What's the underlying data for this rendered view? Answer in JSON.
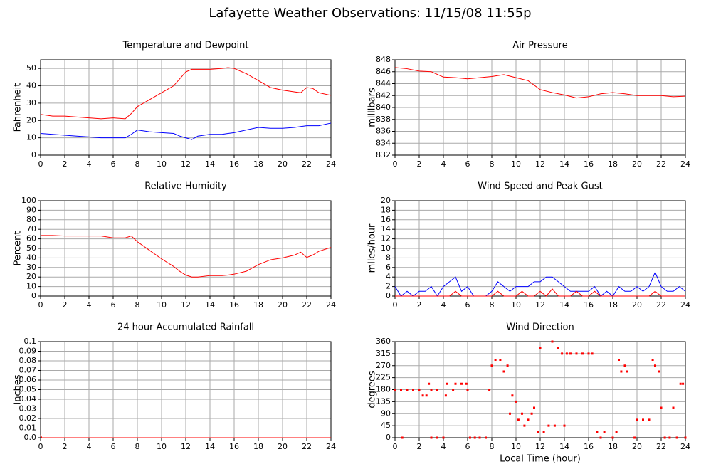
{
  "title": "Lafayette Weather Observations: 11/15/08 11:55p",
  "chart_data": [
    {
      "type": "line",
      "title": "Temperature and Dewpoint",
      "y_label": "Fahrenheit",
      "x": [
        0,
        1,
        2,
        3,
        4,
        5,
        6,
        7,
        7.5,
        8,
        9,
        10,
        11,
        11.5,
        12,
        12.5,
        13,
        14,
        15,
        15.5,
        16,
        17,
        18,
        19,
        20,
        21,
        21.5,
        22,
        22.5,
        23,
        24
      ],
      "series": [
        {
          "color": "#ff0000",
          "values": [
            23.5,
            22.5,
            22.5,
            22,
            21.5,
            21,
            21.5,
            21,
            24,
            28,
            32,
            36,
            40,
            44,
            48,
            49.5,
            49.5,
            49.5,
            50,
            50.5,
            50,
            47,
            43,
            39,
            37.5,
            36.5,
            36,
            39,
            38.5,
            36,
            34.5
          ]
        },
        {
          "color": "#0000ff",
          "values": [
            12.5,
            12,
            11.5,
            11,
            10.5,
            10,
            10,
            10,
            12,
            14.5,
            13.5,
            13,
            12.5,
            11,
            10,
            9,
            11,
            12,
            12,
            12.5,
            13,
            14.5,
            16,
            15.5,
            15.5,
            16,
            16.5,
            17,
            17,
            17,
            18.5
          ]
        }
      ],
      "xlim": [
        0,
        24
      ],
      "xticks": [
        0,
        2,
        4,
        6,
        8,
        10,
        12,
        14,
        16,
        18,
        20,
        22,
        24
      ],
      "ylim": [
        0,
        55
      ],
      "yticks": [
        0,
        10,
        20,
        30,
        40,
        50
      ],
      "grid": true
    },
    {
      "type": "line",
      "title": "Air Pressure",
      "y_label": "millibars",
      "x": [
        0,
        1,
        2,
        3,
        4,
        5,
        6,
        7,
        8,
        9,
        10,
        11,
        12,
        13,
        14,
        15,
        16,
        17,
        18,
        19,
        20,
        21,
        22,
        23,
        24
      ],
      "series": [
        {
          "color": "#ff0000",
          "values": [
            846.7,
            846.5,
            846.1,
            846,
            845.1,
            845,
            844.8,
            845,
            845.2,
            845.5,
            845,
            844.5,
            843,
            842.5,
            842.1,
            841.6,
            841.8,
            842.3,
            842.5,
            842.3,
            842,
            842,
            842,
            841.8,
            841.9
          ]
        }
      ],
      "xlim": [
        0,
        24
      ],
      "xticks": [
        0,
        2,
        4,
        6,
        8,
        10,
        12,
        14,
        16,
        18,
        20,
        22,
        24
      ],
      "ylim": [
        832,
        848
      ],
      "yticks": [
        832,
        834,
        836,
        838,
        840,
        842,
        844,
        846,
        848
      ],
      "grid": true
    },
    {
      "type": "line",
      "title": "Relative Humidity",
      "y_label": "Percent",
      "x": [
        0,
        1,
        2,
        3,
        4,
        5,
        6,
        7,
        7.5,
        8,
        9,
        10,
        11,
        11.5,
        12,
        12.5,
        13,
        14,
        15,
        15.5,
        16,
        17,
        18,
        19,
        20,
        21,
        21.5,
        22,
        22.5,
        23,
        24
      ],
      "series": [
        {
          "color": "#ff0000",
          "values": [
            63.5,
            63.5,
            63,
            63,
            63,
            63,
            61,
            61,
            63,
            57,
            48,
            39,
            31,
            26,
            22,
            20,
            20,
            21.5,
            21.5,
            22,
            23,
            26,
            33,
            38,
            40,
            43,
            46,
            40.5,
            43,
            47,
            51
          ]
        }
      ],
      "xlim": [
        0,
        24
      ],
      "xticks": [
        0,
        2,
        4,
        6,
        8,
        10,
        12,
        14,
        16,
        18,
        20,
        22,
        24
      ],
      "ylim": [
        0,
        100
      ],
      "yticks": [
        0,
        10,
        20,
        30,
        40,
        50,
        60,
        70,
        80,
        90,
        100
      ],
      "grid": true
    },
    {
      "type": "line",
      "title": "Wind Speed and Peak Gust",
      "y_label": "miles/hour",
      "x": [
        0,
        0.5,
        1,
        1.5,
        2,
        2.5,
        3,
        3.5,
        4,
        4.5,
        5,
        5.5,
        6,
        6.5,
        7,
        7.5,
        8,
        8.5,
        9,
        9.5,
        10,
        10.5,
        11,
        11.5,
        12,
        12.5,
        13,
        13.5,
        14,
        14.5,
        15,
        15.5,
        16,
        16.5,
        17,
        17.5,
        18,
        18.5,
        19,
        19.5,
        20,
        20.5,
        21,
        21.5,
        22,
        22.5,
        23,
        23.5,
        24
      ],
      "series": [
        {
          "color": "#0000ff",
          "values": [
            2,
            0,
            1,
            0,
            1,
            1,
            2,
            0,
            2,
            3,
            4,
            1,
            2,
            0,
            0,
            0,
            1,
            3,
            2,
            1,
            2,
            2,
            2,
            3,
            3,
            4,
            4,
            3,
            2,
            1,
            1,
            1,
            1,
            2,
            0,
            1,
            0,
            2,
            1,
            1,
            2,
            1,
            2,
            5,
            2,
            1,
            1,
            2,
            1
          ]
        },
        {
          "color": "#ff0000",
          "values": [
            0,
            0,
            0,
            0,
            0,
            0,
            0,
            0,
            0,
            0,
            1,
            0,
            0,
            0,
            0,
            0,
            0,
            1,
            0,
            0,
            0,
            1,
            0,
            0,
            1,
            0,
            1.5,
            0,
            0,
            0,
            1,
            0,
            0,
            1,
            0,
            0,
            0,
            0,
            0,
            0,
            0,
            0,
            0,
            1,
            0,
            0,
            0,
            0,
            0
          ]
        }
      ],
      "xlim": [
        0,
        24
      ],
      "xticks": [
        0,
        2,
        4,
        6,
        8,
        10,
        12,
        14,
        16,
        18,
        20,
        22,
        24
      ],
      "ylim": [
        0,
        20
      ],
      "yticks": [
        0,
        2,
        4,
        6,
        8,
        10,
        12,
        14,
        16,
        18,
        20
      ],
      "grid": true
    },
    {
      "type": "line",
      "title": "24 hour Accumulated Rainfall",
      "y_label": "Inches",
      "x": [
        0,
        0.1,
        24
      ],
      "series": [
        {
          "color": "#ff0000",
          "values": [
            0.003,
            0,
            0
          ]
        }
      ],
      "xlim": [
        0,
        24
      ],
      "xticks": [
        0,
        2,
        4,
        6,
        8,
        10,
        12,
        14,
        16,
        18,
        20,
        22,
        24
      ],
      "ylim": [
        0,
        0.1
      ],
      "yticks": [
        {
          "value": 0,
          "label": "0.0"
        },
        0.01,
        0.02,
        0.03,
        0.04,
        0.05,
        0.06,
        0.07,
        0.08,
        0.09,
        {
          "value": 0.1,
          "label": "0.1"
        }
      ],
      "grid": true
    },
    {
      "type": "scatter",
      "title": "Wind Direction",
      "y_label": "degrees",
      "x_label": "Local Time (hour)",
      "x": [
        0,
        0.5,
        1,
        1.5,
        2,
        0.6,
        2.3,
        2.6,
        2.8,
        3,
        3.5,
        3,
        3.5,
        4,
        4.2,
        4.3,
        4.8,
        5,
        5.5,
        5.9,
        6,
        6.2,
        6.6,
        7,
        7.5,
        7.8,
        8,
        8.3,
        8.7,
        9,
        9.3,
        9.5,
        9.7,
        10,
        10.2,
        10.5,
        10.7,
        11,
        11.3,
        11.5,
        11.8,
        12,
        12.3,
        12.7,
        13,
        13.2,
        13.5,
        13.8,
        14,
        14.2,
        14.5,
        15,
        15.5,
        16,
        16.3,
        16.7,
        17,
        17.3,
        18,
        18.3,
        18.5,
        18.7,
        19,
        19.2,
        19.8,
        20,
        20.5,
        21,
        21.3,
        21.5,
        21.8,
        22,
        22.3,
        22.7,
        23,
        23.3,
        23.6,
        23.8,
        24
      ],
      "series": [
        {
          "color": "#ff0000",
          "values": [
            180,
            180,
            180,
            180,
            180,
            0,
            158,
            158,
            202,
            180,
            180,
            0,
            0,
            0,
            158,
            202,
            180,
            202,
            202,
            202,
            180,
            0,
            0,
            0,
            0,
            180,
            270,
            292,
            292,
            248,
            270,
            90,
            158,
            135,
            67,
            90,
            45,
            67,
            90,
            112,
            22,
            337,
            22,
            45,
            360,
            45,
            337,
            315,
            45,
            315,
            315,
            315,
            315,
            315,
            315,
            22,
            0,
            22,
            0,
            22,
            292,
            248,
            270,
            248,
            0,
            67,
            67,
            67,
            292,
            270,
            248,
            112,
            0,
            0,
            112,
            0,
            202,
            202,
            0
          ]
        }
      ],
      "xlim": [
        0,
        24
      ],
      "xticks": [
        0,
        2,
        4,
        6,
        8,
        10,
        12,
        14,
        16,
        18,
        20,
        22,
        24
      ],
      "ylim": [
        0,
        360
      ],
      "yticks": [
        0,
        45,
        90,
        135,
        180,
        225,
        270,
        315,
        360
      ],
      "grid": true
    }
  ]
}
